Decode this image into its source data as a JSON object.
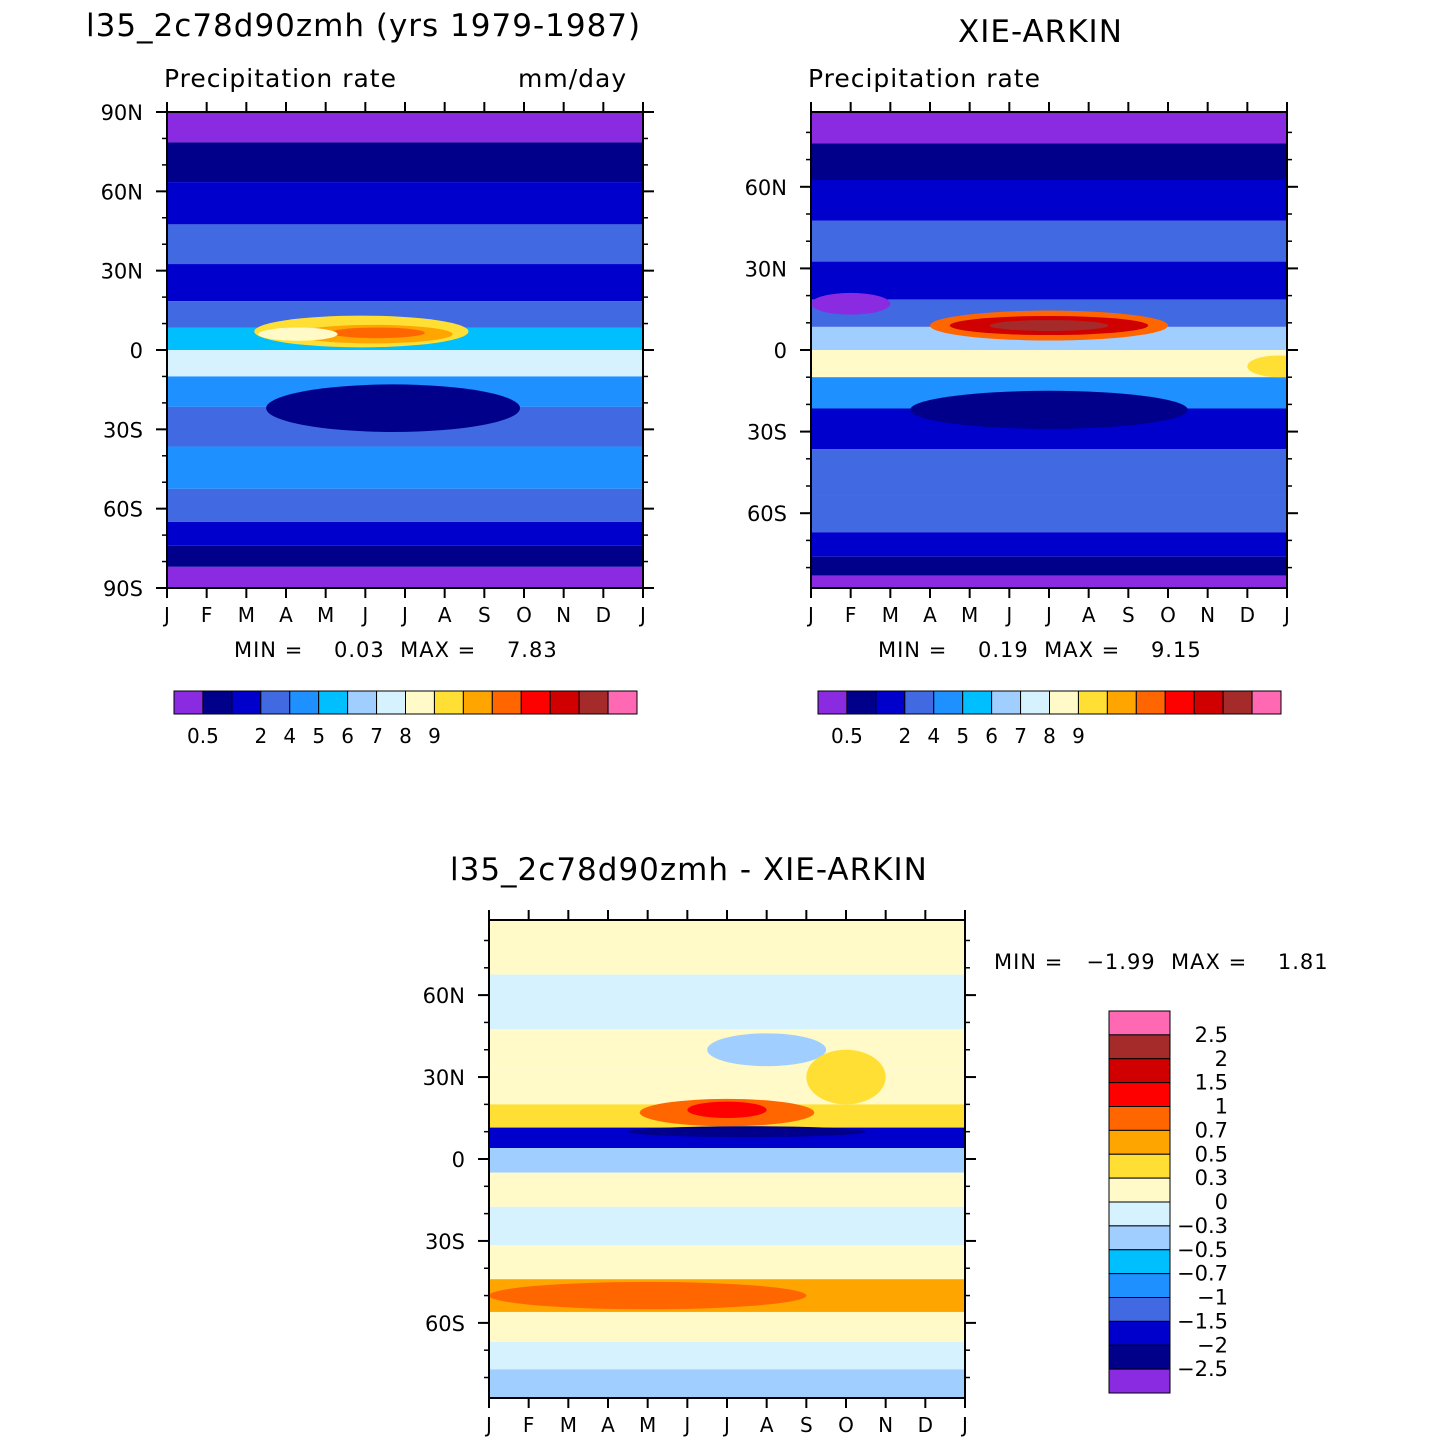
{
  "colors": {
    "scale": [
      "#8a2be2",
      "#00008b",
      "#0000cd",
      "#4169e1",
      "#1e90ff",
      "#00bfff",
      "#a0cfff",
      "#d6f2ff",
      "#fffac8",
      "#ffdf33",
      "#ffa500",
      "#ff6600",
      "#ff0000",
      "#d00000",
      "#a52a2a",
      "#ff69b4"
    ]
  },
  "chart_data": [
    {
      "type": "heatmap",
      "title": "l35_2c78d90zmh (yrs 1979-1987)",
      "subtitle": "Precipitation rate",
      "units": "mm/day",
      "months": [
        "J",
        "F",
        "M",
        "A",
        "M",
        "J",
        "J",
        "A",
        "S",
        "O",
        "N",
        "D",
        "J"
      ],
      "lat_labels": [
        "90N",
        "60N",
        "30N",
        "0",
        "30S",
        "60S",
        "90S"
      ],
      "ylim": [
        -90,
        90
      ],
      "min_text": "MIN =    0.03  MAX =    7.83",
      "min": 0.03,
      "max": 7.83,
      "colorbar_labels": [
        "0.5",
        "2",
        "4",
        "5",
        "6",
        "7",
        "8",
        "9"
      ],
      "bands": [
        {
          "lat": 85,
          "level": 0
        },
        {
          "lat": 72,
          "level": 1
        },
        {
          "lat": 55,
          "level": 2
        },
        {
          "lat": 40,
          "level": 3
        },
        {
          "lat": 25,
          "level": 2
        },
        {
          "lat": 12,
          "level": 3
        },
        {
          "lat": 5,
          "level": 5
        },
        {
          "lat": -5,
          "level": 7
        },
        {
          "lat": -15,
          "level": 4
        },
        {
          "lat": -28,
          "level": 3
        },
        {
          "lat": -45,
          "level": 4
        },
        {
          "lat": -60,
          "level": 3
        },
        {
          "lat": -70,
          "level": 2
        },
        {
          "lat": -78,
          "level": 1
        },
        {
          "lat": -86,
          "level": 0
        }
      ],
      "blobs": [
        {
          "month": 4.9,
          "lat": 7,
          "dmonth": 2.7,
          "dlat": 6,
          "level": 9
        },
        {
          "month": 5.2,
          "lat": 6,
          "dmonth": 2.0,
          "dlat": 3.5,
          "level": 10
        },
        {
          "month": 5.3,
          "lat": 6.5,
          "dmonth": 1.2,
          "dlat": 2,
          "level": 11
        },
        {
          "month": 5.7,
          "lat": -22,
          "dmonth": 3.2,
          "dlat": 9,
          "level": 1
        },
        {
          "month": 3.3,
          "lat": 6,
          "dmonth": 1.0,
          "dlat": 2.5,
          "level": 8
        }
      ]
    },
    {
      "type": "heatmap",
      "title": "XIE-ARKIN",
      "subtitle": "Precipitation rate",
      "months": [
        "J",
        "F",
        "M",
        "A",
        "M",
        "J",
        "J",
        "A",
        "S",
        "O",
        "N",
        "D",
        "J"
      ],
      "lat_labels": [
        "60N",
        "30N",
        "0",
        "30S",
        "60S"
      ],
      "ylim": [
        -87.5,
        87.5
      ],
      "min_text": "MIN =    0.19  MAX =    9.15",
      "min": 0.19,
      "max": 9.15,
      "colorbar_labels": [
        "0.5",
        "2",
        "4",
        "5",
        "6",
        "7",
        "8",
        "9"
      ],
      "bands": [
        {
          "lat": 82,
          "level": 0
        },
        {
          "lat": 70,
          "level": 1
        },
        {
          "lat": 55,
          "level": 2
        },
        {
          "lat": 40,
          "level": 3
        },
        {
          "lat": 25,
          "level": 2
        },
        {
          "lat": 12,
          "level": 3
        },
        {
          "lat": 5,
          "level": 6
        },
        {
          "lat": -5,
          "level": 8
        },
        {
          "lat": -15,
          "level": 4
        },
        {
          "lat": -28,
          "level": 2
        },
        {
          "lat": -45,
          "level": 3
        },
        {
          "lat": -62,
          "level": 3
        },
        {
          "lat": -72,
          "level": 2
        },
        {
          "lat": -80,
          "level": 1
        },
        {
          "lat": -86,
          "level": 0
        }
      ],
      "blobs": [
        {
          "month": 6.0,
          "lat": 9,
          "dmonth": 3.0,
          "dlat": 5.5,
          "level": 11
        },
        {
          "month": 6.0,
          "lat": 9,
          "dmonth": 2.5,
          "dlat": 3.5,
          "level": 13
        },
        {
          "month": 6.0,
          "lat": 9,
          "dmonth": 1.5,
          "dlat": 2,
          "level": 14
        },
        {
          "month": 6.0,
          "lat": -22,
          "dmonth": 3.5,
          "dlat": 7,
          "level": 1
        },
        {
          "month": 1.0,
          "lat": 17,
          "dmonth": 1.0,
          "dlat": 4,
          "level": 0
        },
        {
          "month": 11.8,
          "lat": -6,
          "dmonth": 0.8,
          "dlat": 4,
          "level": 9
        }
      ]
    },
    {
      "type": "heatmap",
      "title": "l35_2c78d90zmh - XIE-ARKIN",
      "months": [
        "J",
        "F",
        "M",
        "A",
        "M",
        "J",
        "J",
        "A",
        "S",
        "O",
        "N",
        "D",
        "J"
      ],
      "lat_labels": [
        "60N",
        "30N",
        "0",
        "30S",
        "60S"
      ],
      "ylim": [
        -87.5,
        87.5
      ],
      "min_text": "MIN =   −1.99  MAX =    1.81",
      "min": -1.99,
      "max": 1.81,
      "colorbar_labels": [
        "2.5",
        "2",
        "1.5",
        "1",
        "0.7",
        "0.5",
        "0.3",
        "0",
        "−0.3",
        "−0.5",
        "−0.7",
        "−1",
        "−1.5",
        "−2",
        "−2.5"
      ],
      "bands": [
        {
          "lat": 80,
          "level": 8
        },
        {
          "lat": 55,
          "level": 7
        },
        {
          "lat": 40,
          "level": 8
        },
        {
          "lat": 25,
          "level": 8
        },
        {
          "lat": 15,
          "level": 9
        },
        {
          "lat": 8,
          "level": 2
        },
        {
          "lat": 0,
          "level": 6
        },
        {
          "lat": -10,
          "level": 8
        },
        {
          "lat": -25,
          "level": 7
        },
        {
          "lat": -38,
          "level": 8
        },
        {
          "lat": -50,
          "level": 10
        },
        {
          "lat": -62,
          "level": 8
        },
        {
          "lat": -72,
          "level": 7
        },
        {
          "lat": -82,
          "level": 6
        }
      ],
      "blobs": [
        {
          "month": 6.0,
          "lat": 17,
          "dmonth": 2.2,
          "dlat": 5,
          "level": 11
        },
        {
          "month": 6.0,
          "lat": 18,
          "dmonth": 1.0,
          "dlat": 3,
          "level": 12
        },
        {
          "month": 6.5,
          "lat": 10,
          "dmonth": 3.0,
          "dlat": 2,
          "level": 1
        },
        {
          "month": 7.0,
          "lat": 40,
          "dmonth": 1.5,
          "dlat": 6,
          "level": 6
        },
        {
          "month": 4.0,
          "lat": -50,
          "dmonth": 4.0,
          "dlat": 5,
          "level": 11
        },
        {
          "month": 9.0,
          "lat": 30,
          "dmonth": 1.0,
          "dlat": 10,
          "level": 9
        }
      ]
    }
  ]
}
